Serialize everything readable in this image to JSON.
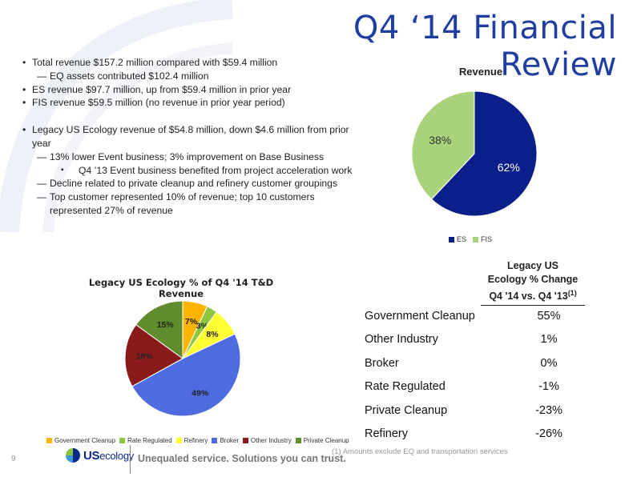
{
  "slide": {
    "title": "Q4 ‘14 Financial Review",
    "page_number": "9",
    "footnote": "(1) Amounts exclude EQ and transportation services",
    "tagline": "Unequaled service. Solutions you can trust.",
    "logo_us": "US",
    "logo_eco": "ecology"
  },
  "bullets": [
    {
      "level": "b",
      "text": "Total revenue $157.2 million compared with $59.4 million"
    },
    {
      "level": "d",
      "text": "EQ assets contributed $102.4 million"
    },
    {
      "level": "b",
      "text": "ES revenue $97.7 million, up from $59.4 million in prior year"
    },
    {
      "level": "b",
      "text": "FIS revenue $59.5 million (no revenue in prior year period)"
    },
    {
      "level": "gap",
      "text": ""
    },
    {
      "level": "b",
      "text": "Legacy US Ecology revenue of $54.8 million, down $4.6 million from prior year"
    },
    {
      "level": "d",
      "text": "13% lower Event business; 3% improvement on Base Business"
    },
    {
      "level": "s",
      "text": "Q4 ’13 Event business benefited from project acceleration work"
    },
    {
      "level": "d",
      "text": "Decline related to private cleanup and refinery customer groupings"
    },
    {
      "level": "d",
      "text": "Top customer represented 10% of revenue; top 10 customers represented 27% of revenue"
    }
  ],
  "chart_data": [
    {
      "type": "pie",
      "title": "Revenue",
      "categories": [
        "ES",
        "FIS"
      ],
      "values": [
        62,
        38
      ],
      "labels": [
        "62%",
        "38%"
      ],
      "colors": [
        "#0b1f8a",
        "#a9d37a"
      ],
      "label_colors": [
        "#ffffff",
        "#333333"
      ],
      "legend_position": "bottom"
    },
    {
      "type": "pie",
      "title": "Legacy US Ecology % of Q4 '14 T&D Revenue",
      "categories": [
        "Government Cleanup",
        "Rate Regulated",
        "Refinery",
        "Broker",
        "Other Industry",
        "Private Cleanup"
      ],
      "values": [
        7,
        3,
        8,
        49,
        18,
        15
      ],
      "labels": [
        "7%",
        "3%",
        "8%",
        "49%",
        "18%",
        "15%"
      ],
      "colors": [
        "#ffb400",
        "#8dc63f",
        "#ffff33",
        "#4e6ce0",
        "#8b1a1a",
        "#5f8c2d"
      ],
      "label_colors": [
        "#222222",
        "#222222",
        "#222222",
        "#222222",
        "#222222",
        "#222222"
      ],
      "legend_position": "bottom"
    },
    {
      "type": "table",
      "header": {
        "line1": "Legacy US",
        "line2": "Ecology % Change",
        "line3": "Q4 '14 vs. Q4 '13",
        "superscript": "(1)"
      },
      "rows": [
        {
          "label": "Government Cleanup",
          "value": "55%"
        },
        {
          "label": "Other Industry",
          "value": "1%"
        },
        {
          "label": "Broker",
          "value": "0%"
        },
        {
          "label": "Rate Regulated",
          "value": "-1%"
        },
        {
          "label": "Private Cleanup",
          "value": "-23%"
        },
        {
          "label": "Refinery",
          "value": "-26%"
        }
      ]
    }
  ]
}
